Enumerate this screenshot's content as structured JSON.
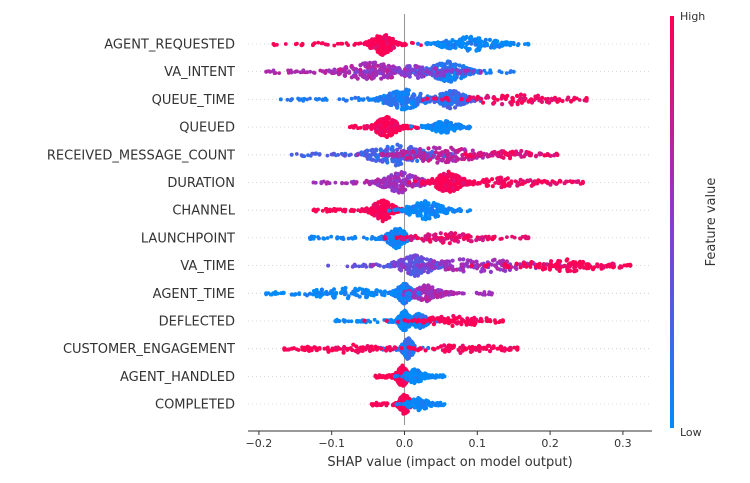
{
  "chart_data": {
    "type": "scatter",
    "subtype": "shap-beeswarm-summary",
    "xlabel": "SHAP value (impact on model output)",
    "xticks": [
      "−0.2",
      "−0.1",
      "0.0",
      "0.1",
      "0.2",
      "0.3"
    ],
    "xtick_values": [
      -0.2,
      -0.1,
      0.0,
      0.1,
      0.2,
      0.3
    ],
    "xlim": [
      -0.215,
      0.34
    ],
    "colorbar": {
      "label": "Feature value",
      "high_label": "High",
      "low_label": "Low",
      "high_color": "#ff0052",
      "low_color": "#008bfb"
    },
    "features": [
      {
        "name": "AGENT_REQUESTED",
        "min": -0.18,
        "max": 0.17,
        "clusters": [
          {
            "center": -0.03,
            "width": 0.012,
            "density": 1.0,
            "color": 1.0
          },
          {
            "center": 0.09,
            "width": 0.03,
            "density": 0.7,
            "color": 0.0
          }
        ]
      },
      {
        "name": "VA_INTENT",
        "min": -0.19,
        "max": 0.15,
        "clusters": [
          {
            "center": -0.045,
            "width": 0.03,
            "density": 0.9,
            "color": 0.65
          },
          {
            "center": 0.06,
            "width": 0.02,
            "density": 1.0,
            "color": 0.1
          },
          {
            "center": 0.02,
            "width": 0.04,
            "density": 0.6,
            "color": 0.5
          }
        ]
      },
      {
        "name": "QUEUE_TIME",
        "min": -0.17,
        "max": 0.25,
        "clusters": [
          {
            "center": 0.0,
            "width": 0.02,
            "density": 1.0,
            "color": 0.1
          },
          {
            "center": 0.065,
            "width": 0.015,
            "density": 0.9,
            "color": 0.2
          },
          {
            "center": 0.15,
            "width": 0.06,
            "density": 0.5,
            "color": 0.95
          }
        ]
      },
      {
        "name": "QUEUED",
        "min": -0.075,
        "max": 0.09,
        "clusters": [
          {
            "center": -0.025,
            "width": 0.012,
            "density": 1.0,
            "color": 1.0
          },
          {
            "center": 0.055,
            "width": 0.015,
            "density": 0.6,
            "color": 0.0
          }
        ]
      },
      {
        "name": "RECEIVED_MESSAGE_COUNT",
        "min": -0.155,
        "max": 0.21,
        "clusters": [
          {
            "center": -0.01,
            "width": 0.03,
            "density": 1.0,
            "color": 0.25
          },
          {
            "center": 0.05,
            "width": 0.04,
            "density": 0.8,
            "color": 0.7
          },
          {
            "center": 0.15,
            "width": 0.04,
            "density": 0.4,
            "color": 0.9
          }
        ]
      },
      {
        "name": "DURATION",
        "min": -0.125,
        "max": 0.245,
        "clusters": [
          {
            "center": -0.005,
            "width": 0.02,
            "density": 1.0,
            "color": 0.6
          },
          {
            "center": 0.06,
            "width": 0.015,
            "density": 1.0,
            "color": 1.0
          },
          {
            "center": 0.14,
            "width": 0.05,
            "density": 0.5,
            "color": 0.95
          }
        ]
      },
      {
        "name": "CHANNEL",
        "min": -0.125,
        "max": 0.09,
        "clusters": [
          {
            "center": -0.03,
            "width": 0.012,
            "density": 1.0,
            "color": 1.0
          },
          {
            "center": 0.03,
            "width": 0.02,
            "density": 0.9,
            "color": 0.0
          }
        ]
      },
      {
        "name": "LAUNCHPOINT",
        "min": -0.13,
        "max": 0.17,
        "clusters": [
          {
            "center": -0.01,
            "width": 0.01,
            "density": 1.0,
            "color": 0.05
          },
          {
            "center": 0.06,
            "width": 0.04,
            "density": 0.5,
            "color": 0.9
          }
        ]
      },
      {
        "name": "VA_TIME",
        "min": -0.105,
        "max": 0.31,
        "clusters": [
          {
            "center": 0.015,
            "width": 0.02,
            "density": 1.0,
            "color": 0.35
          },
          {
            "center": 0.1,
            "width": 0.06,
            "density": 0.7,
            "color": 0.6
          },
          {
            "center": 0.22,
            "width": 0.05,
            "density": 0.6,
            "color": 1.0
          }
        ]
      },
      {
        "name": "AGENT_TIME",
        "min": -0.19,
        "max": 0.12,
        "clusters": [
          {
            "center": 0.0,
            "width": 0.008,
            "density": 1.0,
            "color": 0.1
          },
          {
            "center": 0.03,
            "width": 0.015,
            "density": 0.8,
            "color": 0.6
          },
          {
            "center": -0.08,
            "width": 0.05,
            "density": 0.5,
            "color": 0.0
          }
        ]
      },
      {
        "name": "DEFLECTED",
        "min": -0.095,
        "max": 0.135,
        "clusters": [
          {
            "center": 0.0,
            "width": 0.006,
            "density": 1.0,
            "color": 0.0
          },
          {
            "center": 0.02,
            "width": 0.01,
            "density": 0.7,
            "color": 0.1
          },
          {
            "center": 0.07,
            "width": 0.04,
            "density": 0.5,
            "color": 1.0
          }
        ]
      },
      {
        "name": "CUSTOMER_ENGAGEMENT",
        "min": -0.165,
        "max": 0.155,
        "clusters": [
          {
            "center": 0.005,
            "width": 0.006,
            "density": 1.0,
            "color": 0.15
          },
          {
            "center": -0.08,
            "width": 0.05,
            "density": 0.4,
            "color": 1.0
          },
          {
            "center": 0.08,
            "width": 0.05,
            "density": 0.4,
            "color": 1.0
          }
        ]
      },
      {
        "name": "AGENT_HANDLED",
        "min": -0.04,
        "max": 0.055,
        "clusters": [
          {
            "center": -0.003,
            "width": 0.006,
            "density": 1.0,
            "color": 1.0
          },
          {
            "center": 0.015,
            "width": 0.01,
            "density": 0.7,
            "color": 0.0
          }
        ]
      },
      {
        "name": "COMPLETED",
        "min": -0.045,
        "max": 0.055,
        "clusters": [
          {
            "center": 0.0,
            "width": 0.006,
            "density": 1.0,
            "color": 1.0
          },
          {
            "center": 0.02,
            "width": 0.012,
            "density": 0.6,
            "color": 0.0
          }
        ]
      }
    ]
  }
}
